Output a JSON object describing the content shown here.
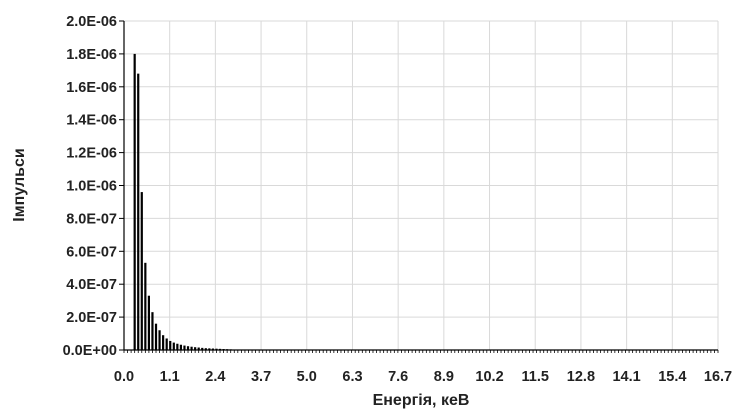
{
  "chart_data": {
    "type": "bar",
    "title": "",
    "xlabel": "Енергія, кеВ",
    "ylabel": "Імпульси",
    "xlim": [
      0,
      16.7
    ],
    "ylim": [
      0,
      2e-06
    ],
    "x_ticks": [
      "0.0",
      "1.1",
      "2.4",
      "3.7",
      "5.0",
      "6.3",
      "7.6",
      "8.9",
      "10.2",
      "11.5",
      "12.8",
      "14.1",
      "15.4",
      "16.7"
    ],
    "y_ticks": [
      "0.0E+00",
      "2.0E-07",
      "4.0E-07",
      "6.0E-07",
      "8.0E-07",
      "1.0E-06",
      "1.2E-06",
      "1.4E-06",
      "1.6E-06",
      "1.8E-06",
      "2.0E-06"
    ],
    "grid": true,
    "bar_color": "#000000",
    "x": [
      0.3,
      0.4,
      0.5,
      0.6,
      0.7,
      0.8,
      0.9,
      1.0,
      1.1,
      1.2,
      1.3,
      1.4,
      1.5,
      1.6,
      1.7,
      1.8,
      1.9,
      2.0,
      2.1,
      2.2,
      2.3,
      2.4,
      2.5,
      2.6,
      2.7,
      2.8,
      2.9,
      3.0
    ],
    "values": [
      1.8e-06,
      1.68e-06,
      9.6e-07,
      5.3e-07,
      3.3e-07,
      2.3e-07,
      1.6e-07,
      1.2e-07,
      9e-08,
      7e-08,
      5.5e-08,
      4.5e-08,
      3.8e-08,
      3.2e-08,
      2.7e-08,
      2.3e-08,
      2e-08,
      1.7e-08,
      1.5e-08,
      1.3e-08,
      1.1e-08,
      1e-08,
      9e-09,
      8e-09,
      7e-09,
      6e-09,
      5e-09,
      4e-09
    ]
  }
}
